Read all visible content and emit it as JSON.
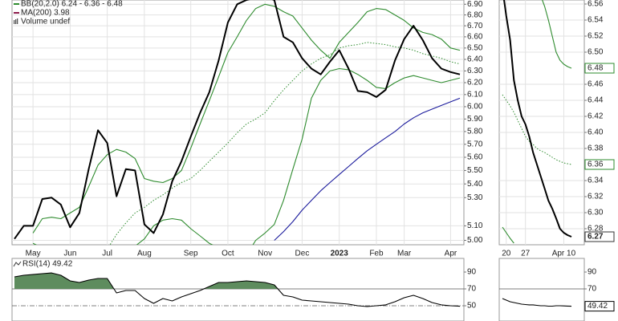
{
  "chart_data": [
    {
      "type": "line",
      "log_scale": true,
      "grid": true,
      "volume_label": "Volume undef",
      "categories": [
        null,
        null,
        "May",
        null,
        null,
        null,
        "Jun",
        null,
        null,
        null,
        "Jul",
        null,
        null,
        null,
        "Aug",
        null,
        null,
        null,
        null,
        "Sep",
        null,
        null,
        null,
        "Oct",
        null,
        null,
        null,
        "Nov",
        null,
        null,
        null,
        "Dec",
        null,
        null,
        null,
        "2023",
        null,
        null,
        null,
        "Feb",
        null,
        null,
        "Mar",
        null,
        null,
        null,
        null,
        "Apr",
        null
      ],
      "ylim": [
        4.97,
        6.94
      ],
      "yticks": [
        {
          "value": 6.9,
          "label": "6.90"
        },
        {
          "value": 6.8,
          "label": "6.80"
        },
        {
          "value": 6.7,
          "label": "6.70"
        },
        {
          "value": 6.6,
          "label": "6.60"
        },
        {
          "value": 6.5,
          "label": "6.50"
        },
        {
          "value": 6.4,
          "label": "6.40"
        },
        {
          "value": 6.3,
          "label": "6.30"
        },
        {
          "value": 6.2,
          "label": "6.20"
        },
        {
          "value": 6.1,
          "label": "6.10"
        },
        {
          "value": 6.0,
          "label": "6.00"
        },
        {
          "value": 5.9,
          "label": "5.90"
        },
        {
          "value": 5.8,
          "label": "5.80"
        },
        {
          "value": 5.7,
          "label": "5.70"
        },
        {
          "value": 5.6,
          "label": "5.60"
        },
        {
          "value": 5.5,
          "label": "5.50"
        },
        {
          "value": 5.4,
          "label": "5.40"
        },
        {
          "value": 5.3,
          "label": "5.30"
        },
        {
          "value": 5.1,
          "label": "5.10"
        },
        {
          "value": 5.0,
          "label": "5.00"
        }
      ],
      "series": [
        {
          "color": "#2e8b2e",
          "line_style": "thin",
          "values": [
            null,
            null,
            5.05,
            5.15,
            5.16,
            5.15,
            5.19,
            5.23,
            5.38,
            5.54,
            5.62,
            5.66,
            5.64,
            5.59,
            5.44,
            5.42,
            5.41,
            5.44,
            5.5,
            5.67,
            5.86,
            6.05,
            6.25,
            6.46,
            6.6,
            6.75,
            6.86,
            6.9,
            6.88,
            6.83,
            6.79,
            6.68,
            6.57,
            6.48,
            6.41,
            6.55,
            6.64,
            6.73,
            6.83,
            6.86,
            6.85,
            6.8,
            6.75,
            6.68,
            6.64,
            6.62,
            6.58,
            6.5,
            6.48
          ]
        },
        {
          "name": "BB(20,2.0) 6.24 - 6.36 - 6.48",
          "color": "#2e8b2e",
          "line_style": "dotted",
          "values": [
            null,
            null,
            null,
            null,
            null,
            null,
            null,
            null,
            null,
            null,
            4.94,
            5.04,
            5.12,
            5.19,
            5.23,
            5.28,
            5.32,
            5.37,
            5.41,
            5.44,
            5.5,
            5.57,
            5.64,
            5.71,
            5.79,
            5.86,
            5.9,
            5.95,
            6.05,
            6.14,
            6.22,
            6.3,
            6.36,
            6.41,
            6.44,
            6.5,
            6.52,
            6.53,
            6.55,
            6.54,
            6.53,
            6.51,
            6.5,
            6.48,
            6.45,
            6.43,
            6.41,
            6.38,
            6.36
          ]
        },
        {
          "color": "#2e8b2e",
          "line_style": "thin",
          "values": [
            null,
            null,
            4.98,
            4.95,
            4.94,
            4.93,
            4.93,
            4.92,
            4.9,
            4.88,
            4.88,
            4.9,
            4.93,
            4.96,
            5.01,
            5.1,
            5.14,
            5.15,
            5.14,
            5.08,
            5.03,
            4.98,
            4.95,
            4.92,
            4.9,
            4.9,
            5.0,
            5.05,
            5.11,
            5.28,
            5.51,
            5.74,
            6.07,
            6.22,
            6.3,
            6.32,
            6.31,
            6.27,
            6.22,
            6.16,
            6.15,
            6.2,
            6.24,
            6.26,
            6.24,
            6.22,
            6.2,
            6.22,
            6.24
          ]
        },
        {
          "name": "MA(200) 3.98",
          "color": "#1a1a9c",
          "legend_color": "#8b1a4a",
          "line_style": "thin",
          "values": [
            null,
            null,
            null,
            null,
            null,
            null,
            null,
            null,
            null,
            null,
            null,
            null,
            null,
            null,
            null,
            null,
            null,
            null,
            null,
            null,
            null,
            null,
            null,
            null,
            null,
            null,
            null,
            null,
            5.0,
            5.06,
            5.13,
            5.21,
            5.28,
            5.35,
            5.41,
            5.47,
            5.53,
            5.59,
            5.65,
            5.7,
            5.75,
            5.8,
            5.86,
            5.91,
            5.95,
            5.98,
            6.01,
            6.04,
            6.07
          ]
        },
        {
          "color": "#000000",
          "line_style": "thick",
          "values": [
            5.01,
            5.1,
            5.1,
            5.29,
            5.3,
            5.25,
            5.09,
            5.19,
            5.51,
            5.81,
            5.71,
            5.31,
            5.51,
            5.5,
            5.11,
            5.05,
            5.18,
            5.42,
            5.57,
            5.76,
            5.95,
            6.12,
            6.39,
            6.73,
            6.9,
            6.94,
            6.96,
            6.97,
            6.94,
            6.6,
            6.55,
            6.41,
            6.32,
            6.27,
            6.38,
            6.48,
            6.32,
            6.13,
            6.12,
            6.08,
            6.14,
            6.39,
            6.58,
            6.7,
            6.57,
            6.41,
            6.32,
            6.29,
            6.27
          ]
        }
      ]
    },
    {
      "type": "line",
      "grid": true,
      "value_label_last": true,
      "categories": [
        null,
        "20",
        null,
        null,
        null,
        null,
        "27",
        null,
        null,
        null,
        null,
        null,
        null,
        null,
        null,
        null,
        "Apr 10",
        null,
        null
      ],
      "ylim": [
        6.26,
        6.565
      ],
      "yticks": [
        6.56,
        6.54,
        6.52,
        {
          "value": 6.5,
          "label": "6.50"
        },
        6.46,
        6.44,
        6.42,
        {
          "value": 6.4,
          "label": "6.40"
        },
        6.38,
        6.34,
        6.32,
        {
          "value": 6.3,
          "label": "6.30"
        },
        6.28
      ],
      "series": [
        {
          "color": "#2e8b2e",
          "line_style": "thin",
          "values": [
            null,
            null,
            null,
            null,
            null,
            null,
            null,
            null,
            null,
            null,
            6.57,
            6.557,
            6.54,
            6.52,
            6.5,
            6.49,
            6.485,
            6.482,
            6.48
          ]
        },
        {
          "color": "#2e8b2e",
          "line_style": "dotted",
          "values": [
            6.447,
            6.44,
            6.433,
            6.425,
            6.415,
            6.405,
            6.395,
            6.389,
            6.385,
            6.38,
            6.377,
            6.375,
            6.372,
            6.369,
            6.366,
            6.364,
            6.362,
            6.361,
            6.36
          ]
        },
        {
          "color": "#2e8b2e",
          "line_style": "thin",
          "values": [
            6.282,
            6.275,
            6.268,
            6.262,
            null,
            null,
            null,
            null,
            null,
            null,
            null,
            null,
            null,
            null,
            null,
            null,
            null,
            null,
            null
          ]
        },
        {
          "color": "#000000",
          "line_style": "thick",
          "values": [
            6.58,
            6.545,
            6.515,
            6.465,
            6.44,
            6.42,
            6.41,
            6.395,
            6.375,
            6.36,
            6.345,
            6.33,
            6.315,
            6.305,
            6.293,
            6.28,
            6.275,
            6.272,
            6.27
          ]
        }
      ]
    },
    {
      "type": "line",
      "title": "RSI(14) 49.42",
      "ylim": [
        31.9,
        106.2
      ],
      "yticks": [
        90,
        70,
        50
      ],
      "grid_styles": [
        "none",
        "solid",
        "dashdot"
      ],
      "overbought": 70,
      "fill_color": "#5e8c5e",
      "series": [
        {
          "color": "#000000",
          "line_style": "thin",
          "values": [
            84.3,
            86.2,
            87.1,
            88.1,
            89.0,
            86.2,
            79.5,
            77.6,
            80.5,
            82.4,
            82.4,
            65.2,
            68.1,
            68.1,
            58.6,
            52.9,
            58.6,
            55.7,
            60.5,
            64.3,
            68.1,
            72.9,
            77.6,
            77.6,
            78.6,
            79.5,
            78.6,
            77.6,
            74.8,
            62.4,
            60.5,
            56.7,
            55.7,
            54.8,
            53.8,
            52.9,
            51.9,
            50.0,
            49.0,
            50.0,
            51.0,
            54.8,
            59.5,
            62.4,
            58.6,
            53.8,
            51.0,
            50.0,
            49.42
          ]
        }
      ]
    },
    {
      "type": "line",
      "value_label_last": true,
      "ylim": [
        31.9,
        106.2
      ],
      "yticks": [
        90,
        70
      ],
      "grid_styles": [
        "none",
        "solid"
      ],
      "series": [
        {
          "color": "#000000",
          "line_style": "thin",
          "values": [
            58.6,
            56.7,
            54.8,
            53.8,
            52.9,
            51.9,
            51.4,
            51.0,
            51.0,
            50.5,
            50.0,
            50.0,
            49.5,
            49.5,
            50.0,
            50.0,
            49.8,
            49.6,
            49.42
          ]
        }
      ]
    }
  ]
}
